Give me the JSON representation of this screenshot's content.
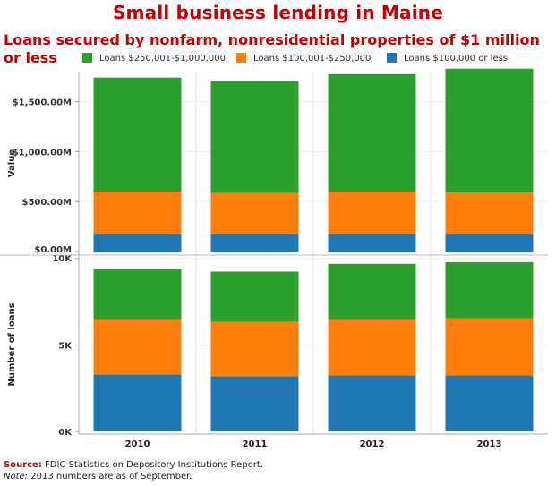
{
  "title": "Small business lending in Maine",
  "subtitle": "Loans secured by nonfarm, nonresidential properties of $1 million or less",
  "colors": {
    "large": "#2ca02c",
    "medium": "#ff7f0e",
    "small": "#1f77b4"
  },
  "legend": [
    {
      "label": "Loans $250,001-$1,000,000",
      "color": "#2ca02c"
    },
    {
      "label": "Loans $100,001-$250,000",
      "color": "#ff7f0e"
    },
    {
      "label": "Loans $100,000 or less",
      "color": "#1f77b4"
    }
  ],
  "chart_data": [
    {
      "type": "bar",
      "stacked": true,
      "categories": [
        "2010",
        "2011",
        "2012",
        "2013"
      ],
      "ylabel": "Value",
      "ylim": [
        0,
        1800
      ],
      "yticks": [
        0,
        500,
        1000,
        1500
      ],
      "ytick_labels": [
        "$0.00M",
        "$500.00M",
        "$1,000.00M",
        "$1,500.00M"
      ],
      "series": [
        {
          "name": "Loans $100,000 or less",
          "values": [
            170,
            170,
            170,
            170
          ]
        },
        {
          "name": "Loans $100,001-$250,000",
          "values": [
            430,
            415,
            430,
            420
          ]
        },
        {
          "name": "Loans $250,001-$1,000,000",
          "values": [
            1140,
            1120,
            1175,
            1240
          ]
        }
      ]
    },
    {
      "type": "bar",
      "stacked": true,
      "categories": [
        "2010",
        "2011",
        "2012",
        "2013"
      ],
      "ylabel": "Number of loans",
      "xlabel_ticks": [
        "2010",
        "2011",
        "2012",
        "2013"
      ],
      "ylim": [
        0,
        10000
      ],
      "yticks": [
        0,
        5000,
        10000
      ],
      "ytick_labels": [
        "0K",
        "5K",
        "10K"
      ],
      "series": [
        {
          "name": "Loans $100,000 or less",
          "values": [
            3300,
            3200,
            3250,
            3250
          ]
        },
        {
          "name": "Loans $100,001-$250,000",
          "values": [
            3200,
            3150,
            3250,
            3300
          ]
        },
        {
          "name": "Loans $250,001-$1,000,000",
          "values": [
            2900,
            2900,
            3200,
            3250
          ]
        }
      ]
    }
  ],
  "footer": {
    "source_label": "Source:",
    "source_text": " FDIC Statistics on Depository Institutions Report.",
    "note_label": "Note:",
    "note_text": " 2013 numbers are as of September."
  }
}
